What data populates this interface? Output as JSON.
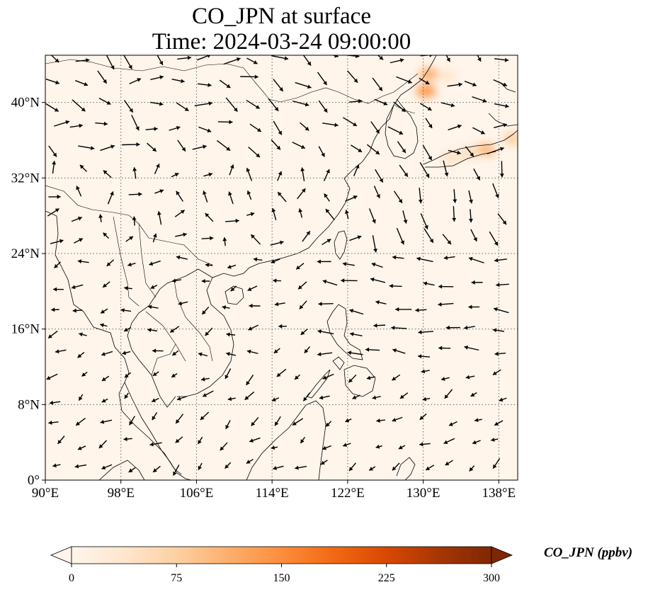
{
  "title": {
    "line1": "CO_JPN at surface",
    "line2": "Time: 2024-03-24 09:00:00"
  },
  "map": {
    "lon_range": [
      90,
      140
    ],
    "lat_range": [
      0,
      45
    ],
    "lon_ticks": [
      {
        "value": 90,
        "label": "90°E"
      },
      {
        "value": 98,
        "label": "98°E"
      },
      {
        "value": 106,
        "label": "106°E"
      },
      {
        "value": 114,
        "label": "114°E"
      },
      {
        "value": 122,
        "label": "122°E"
      },
      {
        "value": 130,
        "label": "130°E"
      },
      {
        "value": 138,
        "label": "138°E"
      }
    ],
    "lat_ticks": [
      {
        "value": 0,
        "label": "0°"
      },
      {
        "value": 8,
        "label": "8°N"
      },
      {
        "value": 16,
        "label": "16°N"
      },
      {
        "value": 24,
        "label": "24°N"
      },
      {
        "value": 32,
        "label": "32°N"
      },
      {
        "value": 40,
        "label": "40°N"
      }
    ],
    "gridlines": true,
    "background_color": "#fff5eb",
    "concentration_hotspots": [
      {
        "lon": 130.3,
        "lat": 41.2,
        "value": 150
      },
      {
        "lon": 130.6,
        "lat": 43.0,
        "value": 120
      },
      {
        "lon": 136.6,
        "lat": 35.0,
        "value": 110
      },
      {
        "lon": 139.5,
        "lat": 36.2,
        "value": 80
      },
      {
        "lon": 133.0,
        "lat": 34.2,
        "value": 50
      },
      {
        "lon": 135.0,
        "lat": 34.7,
        "value": 60
      },
      {
        "lon": 132.5,
        "lat": 42.8,
        "value": 40
      }
    ]
  },
  "colorbar": {
    "label": "CO_JPN (ppbv)",
    "min": 0,
    "max": 300,
    "ticks": [
      {
        "value": 0,
        "label": "0"
      },
      {
        "value": 75,
        "label": "75"
      },
      {
        "value": 150,
        "label": "150"
      },
      {
        "value": 225,
        "label": "225"
      },
      {
        "value": 300,
        "label": "300"
      }
    ],
    "colors": [
      "#fff5eb",
      "#fee6ce",
      "#fdd0a2",
      "#fdae6b",
      "#fd8d3c",
      "#f16913",
      "#d94801",
      "#a63603",
      "#7f2704"
    ]
  }
}
